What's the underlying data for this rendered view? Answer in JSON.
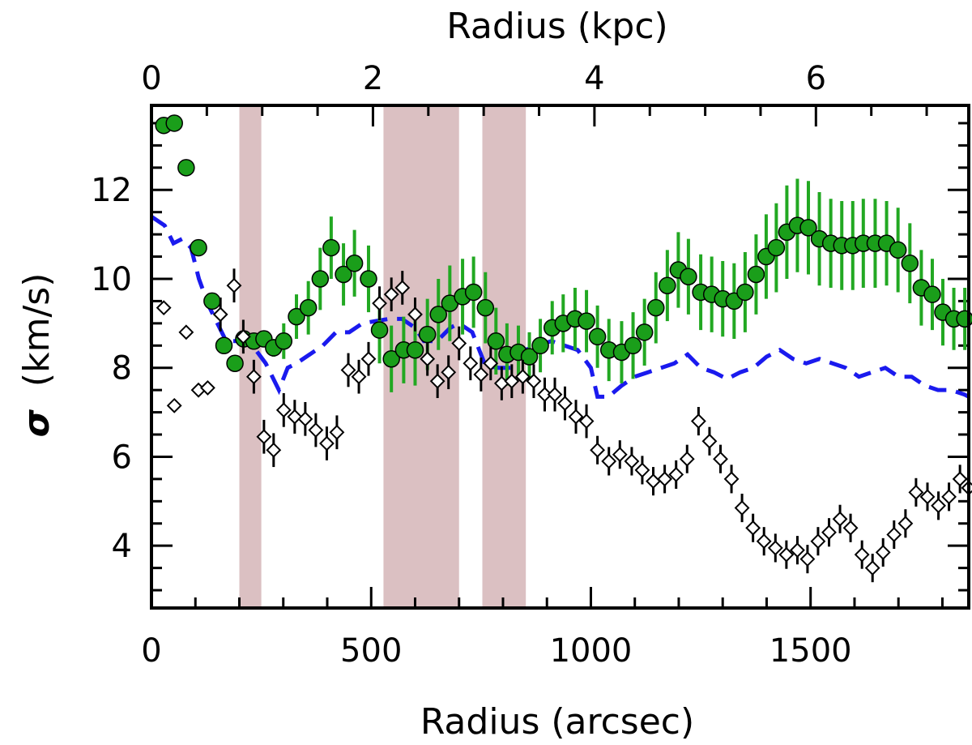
{
  "chart_data": {
    "type": "scatter",
    "xlabel": "Radius (arcsec)",
    "ylabel_symbol": "σ",
    "ylabel_unit": "(km/s)",
    "x2label": "Radius (kpc)",
    "xlim": [
      0,
      1860
    ],
    "ylim": [
      2.6,
      13.9
    ],
    "x2lim": [
      0,
      7.38
    ],
    "x_ticks": [
      0,
      500,
      1000,
      1500
    ],
    "y_ticks": [
      4,
      6,
      8,
      10,
      12
    ],
    "x2_ticks": [
      0,
      2,
      4,
      6
    ],
    "colors": {
      "green_fill": "#1a9e1a",
      "green_err": "#22a822",
      "blue_dash": "#1a1aee",
      "shade": "#dbc0c2",
      "black": "#000000"
    },
    "shaded_regions": [
      [
        200,
        250
      ],
      [
        528,
        700
      ],
      [
        753,
        852
      ]
    ],
    "series": [
      {
        "marker": "circle",
        "x": [
          28,
          52,
          79,
          107,
          138,
          165,
          190,
          210,
          233,
          256,
          278,
          301,
          330,
          357,
          384,
          409,
          437,
          462,
          494,
          519,
          546,
          574,
          600,
          628,
          653,
          679,
          708,
          733,
          760,
          784,
          809,
          835,
          860,
          885,
          912,
          937,
          964,
          990,
          1015,
          1041,
          1070,
          1096,
          1122,
          1148,
          1174,
          1199,
          1222,
          1250,
          1275,
          1300,
          1326,
          1351,
          1376,
          1399,
          1422,
          1446,
          1470,
          1495,
          1520,
          1546,
          1571,
          1596,
          1620,
          1647,
          1673,
          1699,
          1726,
          1752,
          1777,
          1801,
          1826,
          1851
        ],
        "y": [
          13.45,
          13.5,
          12.5,
          10.7,
          9.5,
          8.5,
          8.1,
          8.65,
          8.6,
          8.65,
          8.45,
          8.6,
          9.15,
          9.35,
          10.0,
          10.7,
          10.1,
          10.35,
          10.0,
          8.85,
          8.2,
          8.4,
          8.4,
          8.75,
          9.2,
          9.45,
          9.6,
          9.7,
          9.35,
          8.6,
          8.3,
          8.35,
          8.25,
          8.5,
          8.9,
          9.0,
          9.1,
          9.05,
          8.7,
          8.4,
          8.35,
          8.5,
          8.8,
          9.35,
          9.85,
          10.2,
          10.05,
          9.7,
          9.65,
          9.55,
          9.5,
          9.7,
          10.1,
          10.5,
          10.7,
          11.05,
          11.2,
          11.15,
          10.9,
          10.8,
          10.75,
          10.75,
          10.8,
          10.8,
          10.8,
          10.65,
          10.35,
          9.8,
          9.65,
          9.25,
          9.1,
          9.1
        ],
        "err": [
          0,
          0,
          0,
          0,
          0,
          0,
          0,
          0,
          0,
          0,
          0.2,
          0.4,
          0.5,
          0.6,
          0.7,
          0.7,
          0.7,
          0.75,
          0.75,
          0.75,
          0.75,
          0.75,
          0.8,
          0.8,
          0.8,
          0.85,
          0.85,
          0.8,
          0.8,
          0.75,
          0.7,
          0.6,
          0.55,
          0.6,
          0.6,
          0.65,
          0.7,
          0.7,
          0.7,
          0.7,
          0.7,
          0.75,
          0.75,
          0.8,
          0.8,
          0.85,
          0.85,
          0.85,
          0.85,
          0.85,
          0.85,
          0.9,
          0.9,
          0.95,
          1.0,
          1.05,
          1.05,
          1.05,
          1.05,
          1.0,
          1.0,
          1.0,
          1.0,
          1.0,
          0.95,
          0.95,
          0.9,
          0.85,
          0.8,
          0.75,
          0.7,
          0.7
        ]
      },
      {
        "marker": "open-diamond",
        "x": [
          28,
          52,
          79,
          107,
          128,
          157,
          188,
          209,
          233,
          256,
          278,
          301,
          326,
          350,
          374,
          399,
          422,
          448,
          472,
          494,
          519,
          546,
          571,
          600,
          628,
          651,
          676,
          700,
          726,
          750,
          772,
          797,
          820,
          845,
          870,
          895,
          918,
          941,
          966,
          990,
          1015,
          1041,
          1066,
          1093,
          1117,
          1142,
          1168,
          1194,
          1219,
          1245,
          1270,
          1295,
          1320,
          1344,
          1369,
          1394,
          1420,
          1445,
          1470,
          1493,
          1517,
          1542,
          1567,
          1591,
          1617,
          1641,
          1665,
          1690,
          1716,
          1740,
          1766,
          1791,
          1815,
          1840,
          1860
        ],
        "y": [
          9.35,
          7.15,
          8.8,
          7.5,
          7.55,
          9.2,
          9.85,
          8.7,
          7.8,
          6.45,
          6.15,
          7.05,
          6.9,
          6.85,
          6.6,
          6.3,
          6.55,
          7.95,
          7.8,
          8.2,
          9.45,
          9.65,
          9.8,
          9.2,
          8.2,
          7.7,
          7.9,
          8.55,
          8.1,
          7.85,
          8.1,
          7.65,
          7.7,
          7.8,
          7.7,
          7.4,
          7.4,
          7.2,
          6.9,
          6.8,
          6.15,
          5.9,
          6.05,
          5.9,
          5.7,
          5.45,
          5.5,
          5.6,
          5.95,
          6.8,
          6.35,
          5.95,
          5.5,
          4.85,
          4.4,
          4.1,
          3.95,
          3.8,
          3.9,
          3.7,
          4.1,
          4.3,
          4.6,
          4.4,
          3.8,
          3.5,
          3.85,
          4.25,
          4.5,
          5.2,
          5.1,
          4.9,
          5.1,
          5.5,
          5.3
        ]
      }
    ],
    "dashed_line": {
      "x": [
        0,
        30,
        50,
        70,
        90,
        108,
        130,
        150,
        170,
        200,
        230,
        260,
        290,
        310,
        330,
        360,
        390,
        420,
        450,
        480,
        510,
        540,
        570,
        600,
        620,
        650,
        680,
        700,
        730,
        760,
        790,
        820,
        850,
        880,
        910,
        940,
        970,
        1000,
        1015,
        1040,
        1070,
        1100,
        1130,
        1160,
        1190,
        1220,
        1250,
        1280,
        1310,
        1340,
        1370,
        1400,
        1430,
        1460,
        1490,
        1520,
        1550,
        1580,
        1610,
        1640,
        1670,
        1700,
        1730,
        1760,
        1790,
        1820,
        1850,
        1860
      ],
      "y": [
        11.4,
        11.2,
        10.8,
        10.9,
        10.7,
        10.0,
        9.4,
        9.0,
        8.6,
        8.6,
        8.5,
        8.1,
        7.5,
        8.0,
        8.1,
        8.3,
        8.5,
        8.8,
        8.8,
        9.0,
        9.05,
        9.1,
        9.1,
        8.9,
        8.6,
        8.6,
        8.9,
        9.0,
        8.8,
        8.05,
        8.0,
        8.0,
        8.4,
        8.5,
        8.6,
        8.5,
        8.4,
        8.0,
        7.35,
        7.35,
        7.6,
        7.8,
        7.9,
        8.0,
        8.1,
        8.3,
        8.0,
        7.9,
        7.75,
        7.9,
        8.0,
        8.25,
        8.4,
        8.2,
        8.1,
        8.2,
        8.1,
        8.0,
        7.8,
        7.9,
        8.0,
        7.8,
        7.8,
        7.6,
        7.5,
        7.5,
        7.4,
        7.35
      ]
    }
  }
}
